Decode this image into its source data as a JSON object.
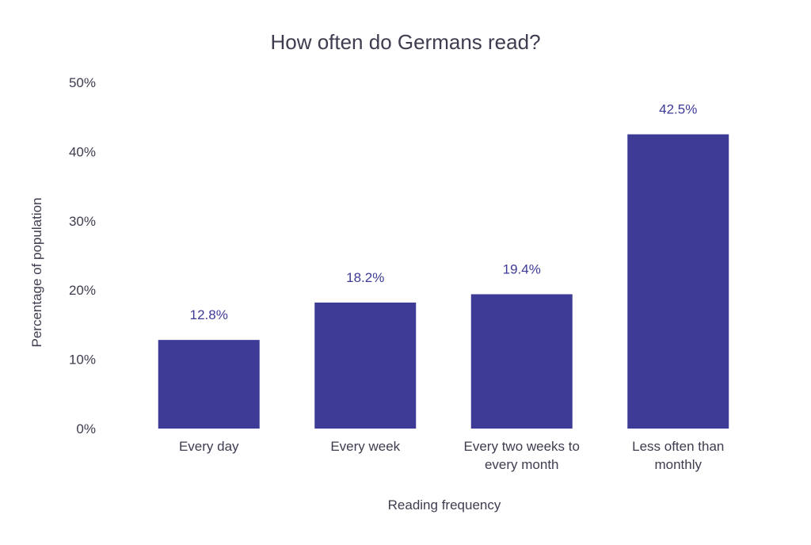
{
  "chart_data": {
    "type": "bar",
    "title": "How often do Germans read?",
    "xlabel": "Reading frequency",
    "ylabel": "Percentage of population",
    "categories": [
      [
        "Every day"
      ],
      [
        "Every week"
      ],
      [
        "Every two weeks to",
        "every month"
      ],
      [
        "Less often than",
        "monthly"
      ]
    ],
    "values": [
      12.8,
      18.2,
      19.4,
      42.5
    ],
    "data_labels": [
      "12.8%",
      "18.2%",
      "19.4%",
      "42.5%"
    ],
    "ylim": [
      0,
      50
    ],
    "yticks": [
      0,
      10,
      20,
      30,
      40,
      50
    ],
    "ytick_labels": [
      "0%",
      "10%",
      "20%",
      "30%",
      "40%",
      "50%"
    ],
    "grid": false,
    "colors": {
      "bar": "#3d3b96",
      "label": "#3d3b96",
      "text": "#3d3d4f"
    }
  }
}
